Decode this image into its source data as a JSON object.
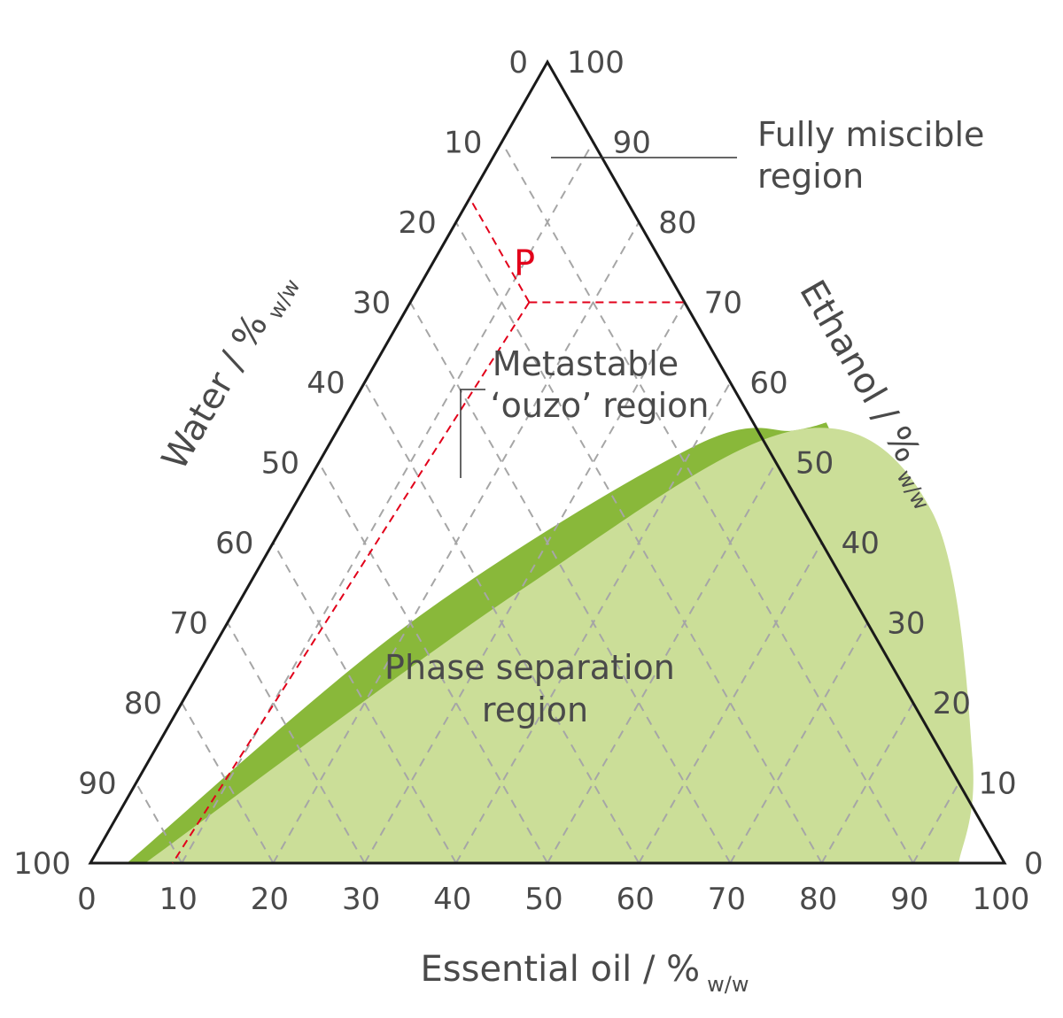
{
  "chart_data": {
    "type": "ternary",
    "axes": {
      "water": {
        "title": "Water / %",
        "unit_sub": "w/w",
        "ticks": [
          "0",
          "10",
          "20",
          "30",
          "40",
          "50",
          "60",
          "70",
          "80",
          "90",
          "100"
        ]
      },
      "ethanol": {
        "title": "Ethanol / %",
        "unit_sub": "w/w",
        "ticks": [
          "100",
          "90",
          "80",
          "70",
          "60",
          "50",
          "40",
          "30",
          "20",
          "10",
          "0"
        ]
      },
      "essential_oil": {
        "title": "Essential oil / %",
        "unit_sub": "w/w",
        "ticks": [
          "0",
          "10",
          "20",
          "30",
          "40",
          "50",
          "60",
          "70",
          "80",
          "90",
          "100"
        ]
      }
    },
    "grid": true,
    "regions": [
      {
        "label_lines": [
          "Fully miscible",
          "region"
        ],
        "color": "#ffffff"
      },
      {
        "label_lines": [
          "Metastable",
          "‘ouzo’ region"
        ],
        "color": "#89b83a",
        "boundary_oil": [
          4,
          20,
          40,
          50,
          53
        ],
        "boundary_ethanol": [
          0,
          30,
          52,
          54,
          55
        ]
      },
      {
        "label_lines": [
          "Phase separation",
          "region"
        ],
        "color": "#cbde98",
        "boundary_oil": [
          6,
          30,
          50,
          70,
          90,
          95
        ],
        "boundary_ethanol": [
          0,
          34,
          54,
          44,
          13,
          0
        ]
      }
    ],
    "point": {
      "label": "P",
      "color": "#e2001a",
      "water": 17,
      "ethanol": 70,
      "essential_oil": 13
    },
    "dilution_line": {
      "from_oil": 13,
      "from_ethanol": 70,
      "to_oil": 9,
      "to_ethanol": 0
    }
  }
}
